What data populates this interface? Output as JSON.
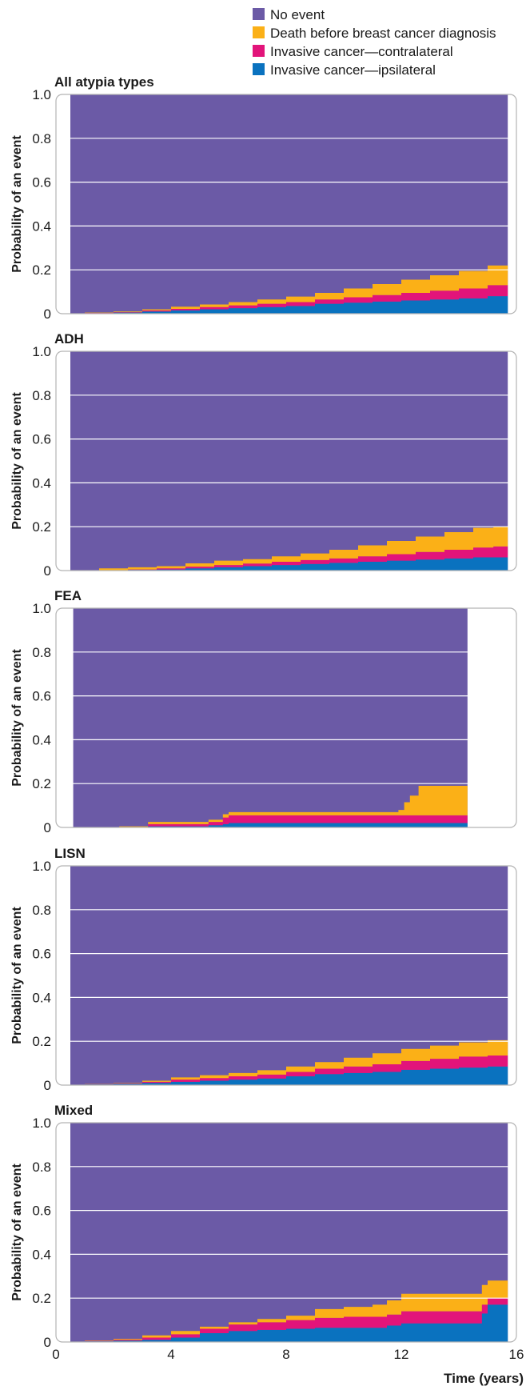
{
  "legend": [
    {
      "label": "No event",
      "color": "#6b5aa6"
    },
    {
      "label": "Death before breast cancer diagnosis",
      "color": "#fbb017"
    },
    {
      "label": "Invasive cancer—contralateral",
      "color": "#e2147a"
    },
    {
      "label": "Invasive cancer—ipsilateral",
      "color": "#0a72bf"
    }
  ],
  "colors": {
    "no_event": "#6b5aa6",
    "death": "#fbb017",
    "contralateral": "#e2147a",
    "ipsilateral": "#0a72bf",
    "grid": "#ffffff",
    "frame": "#b3b3b3"
  },
  "chart_data": [
    {
      "type": "area",
      "subtype": "stacked-step",
      "title": "All atypia types",
      "ylabel": "Probability of an event",
      "xlabel": "",
      "xlim": [
        0,
        16
      ],
      "ylim": [
        0,
        1.0
      ],
      "yticks": [
        "0",
        "0.2",
        "0.4",
        "0.6",
        "0.8",
        "1.0"
      ],
      "xticks": [],
      "x_start": 0.5,
      "x_end": 15.7,
      "x": [
        0.5,
        1,
        2,
        3,
        4,
        5,
        6,
        7,
        8,
        9,
        10,
        11,
        12,
        13,
        14,
        15,
        15.7
      ],
      "series": [
        {
          "name": "Invasive cancer—ipsilateral",
          "values": [
            0,
            0.002,
            0.005,
            0.01,
            0.015,
            0.02,
            0.025,
            0.03,
            0.035,
            0.045,
            0.05,
            0.055,
            0.06,
            0.065,
            0.07,
            0.08,
            0.085
          ]
        },
        {
          "name": "Invasive cancer—contralateral",
          "values": [
            0,
            0.001,
            0.002,
            0.005,
            0.007,
            0.01,
            0.013,
            0.015,
            0.018,
            0.02,
            0.025,
            0.03,
            0.035,
            0.04,
            0.045,
            0.05,
            0.05
          ]
        },
        {
          "name": "Death before breast cancer diagnosis",
          "values": [
            0,
            0.002,
            0.003,
            0.005,
            0.01,
            0.012,
            0.015,
            0.02,
            0.025,
            0.03,
            0.04,
            0.05,
            0.06,
            0.07,
            0.08,
            0.09,
            0.1
          ]
        }
      ]
    },
    {
      "type": "area",
      "subtype": "stacked-step",
      "title": "ADH",
      "ylabel": "Probability of an event",
      "xlabel": "",
      "xlim": [
        0,
        16
      ],
      "ylim": [
        0,
        1.0
      ],
      "yticks": [
        "0",
        "0.2",
        "0.4",
        "0.6",
        "0.8",
        "1.0"
      ],
      "xticks": [],
      "x_start": 0.5,
      "x_end": 15.7,
      "x": [
        0.5,
        1.5,
        2.5,
        3.5,
        4.5,
        5.5,
        6.5,
        7.5,
        8.5,
        9.5,
        10.5,
        11.5,
        12.5,
        13.5,
        14.5,
        15.2,
        15.7
      ],
      "series": [
        {
          "name": "Invasive cancer—ipsilateral",
          "values": [
            0,
            0,
            0.003,
            0.005,
            0.01,
            0.015,
            0.02,
            0.025,
            0.03,
            0.035,
            0.04,
            0.045,
            0.05,
            0.055,
            0.06,
            0.06,
            0.06
          ]
        },
        {
          "name": "Invasive cancer—contralateral",
          "values": [
            0,
            0,
            0.002,
            0.005,
            0.008,
            0.01,
            0.012,
            0.015,
            0.018,
            0.02,
            0.025,
            0.03,
            0.035,
            0.04,
            0.045,
            0.05,
            0.05
          ]
        },
        {
          "name": "Death before breast cancer diagnosis",
          "values": [
            0,
            0.01,
            0.01,
            0.01,
            0.015,
            0.02,
            0.02,
            0.025,
            0.03,
            0.04,
            0.05,
            0.06,
            0.07,
            0.08,
            0.09,
            0.09,
            0.14
          ]
        }
      ]
    },
    {
      "type": "area",
      "subtype": "stacked-step",
      "title": "FEA",
      "ylabel": "Probability of an event",
      "xlabel": "",
      "xlim": [
        0,
        16
      ],
      "ylim": [
        0,
        1.0
      ],
      "yticks": [
        "0",
        "0.2",
        "0.4",
        "0.6",
        "0.8",
        "1.0"
      ],
      "xticks": [],
      "x_start": 0.6,
      "x_end": 14.3,
      "x": [
        0.6,
        2.2,
        3.2,
        5.3,
        5.8,
        6,
        8,
        10,
        11.9,
        12.1,
        12.3,
        12.6,
        14.3
      ],
      "series": [
        {
          "name": "Invasive cancer—ipsilateral",
          "values": [
            0,
            0,
            0.005,
            0.01,
            0.015,
            0.02,
            0.02,
            0.02,
            0.02,
            0.02,
            0.02,
            0.02,
            0.02
          ]
        },
        {
          "name": "Invasive cancer—contralateral",
          "values": [
            0,
            0,
            0.01,
            0.015,
            0.03,
            0.035,
            0.035,
            0.035,
            0.035,
            0.035,
            0.035,
            0.035,
            0.035
          ]
        },
        {
          "name": "Death before breast cancer diagnosis",
          "values": [
            0,
            0.005,
            0.01,
            0.01,
            0.015,
            0.015,
            0.015,
            0.015,
            0.025,
            0.06,
            0.09,
            0.135,
            0.135
          ]
        }
      ]
    },
    {
      "type": "area",
      "subtype": "stacked-step",
      "title": "LISN",
      "ylabel": "Probability of an event",
      "xlabel": "",
      "xlim": [
        0,
        16
      ],
      "ylim": [
        0,
        1.0
      ],
      "yticks": [
        "0",
        "0.2",
        "0.4",
        "0.6",
        "0.8",
        "1.0"
      ],
      "xticks": [],
      "x_start": 0.5,
      "x_end": 15.7,
      "x": [
        0.5,
        1,
        2,
        3,
        4,
        5,
        6,
        7,
        8,
        9,
        10,
        11,
        12,
        13,
        14,
        15,
        15.7
      ],
      "series": [
        {
          "name": "Invasive cancer—ipsilateral",
          "values": [
            0,
            0.003,
            0.006,
            0.01,
            0.015,
            0.02,
            0.025,
            0.03,
            0.04,
            0.05,
            0.055,
            0.06,
            0.07,
            0.075,
            0.08,
            0.085,
            0.09
          ]
        },
        {
          "name": "Invasive cancer—contralateral",
          "values": [
            0,
            0.001,
            0.002,
            0.005,
            0.01,
            0.012,
            0.015,
            0.018,
            0.02,
            0.025,
            0.03,
            0.035,
            0.04,
            0.045,
            0.05,
            0.05,
            0.05
          ]
        },
        {
          "name": "Death before breast cancer diagnosis",
          "values": [
            0,
            0.001,
            0.002,
            0.005,
            0.01,
            0.013,
            0.015,
            0.02,
            0.025,
            0.03,
            0.04,
            0.05,
            0.055,
            0.06,
            0.065,
            0.07,
            0.075
          ]
        }
      ]
    },
    {
      "type": "area",
      "subtype": "stacked-step",
      "title": "Mixed",
      "ylabel": "Probability of an event",
      "xlabel": "Time (years)",
      "xlim": [
        0,
        16
      ],
      "ylim": [
        0,
        1.0
      ],
      "yticks": [
        "0",
        "0.2",
        "0.4",
        "0.6",
        "0.8",
        "1.0"
      ],
      "xticks": [
        "0",
        "4",
        "8",
        "12",
        "16"
      ],
      "x_start": 0.5,
      "x_end": 15.7,
      "x": [
        0.5,
        1,
        2,
        3,
        4,
        5,
        6,
        7,
        8,
        9,
        10,
        11,
        11.5,
        12,
        13,
        14,
        14.5,
        14.8,
        15,
        15.7
      ],
      "series": [
        {
          "name": "Invasive cancer—ipsilateral",
          "values": [
            0,
            0.003,
            0.006,
            0.01,
            0.02,
            0.04,
            0.05,
            0.055,
            0.06,
            0.065,
            0.065,
            0.065,
            0.075,
            0.085,
            0.085,
            0.085,
            0.085,
            0.13,
            0.17,
            0.17
          ]
        },
        {
          "name": "Invasive cancer—contralateral",
          "values": [
            0,
            0.002,
            0.004,
            0.01,
            0.015,
            0.02,
            0.03,
            0.035,
            0.04,
            0.045,
            0.05,
            0.05,
            0.05,
            0.055,
            0.055,
            0.055,
            0.055,
            0.04,
            0.03,
            0.03
          ]
        },
        {
          "name": "Death before breast cancer diagnosis",
          "values": [
            0,
            0.002,
            0.004,
            0.01,
            0.015,
            0.01,
            0.01,
            0.015,
            0.02,
            0.04,
            0.045,
            0.055,
            0.065,
            0.08,
            0.08,
            0.08,
            0.08,
            0.09,
            0.08,
            0.08
          ]
        }
      ]
    }
  ]
}
